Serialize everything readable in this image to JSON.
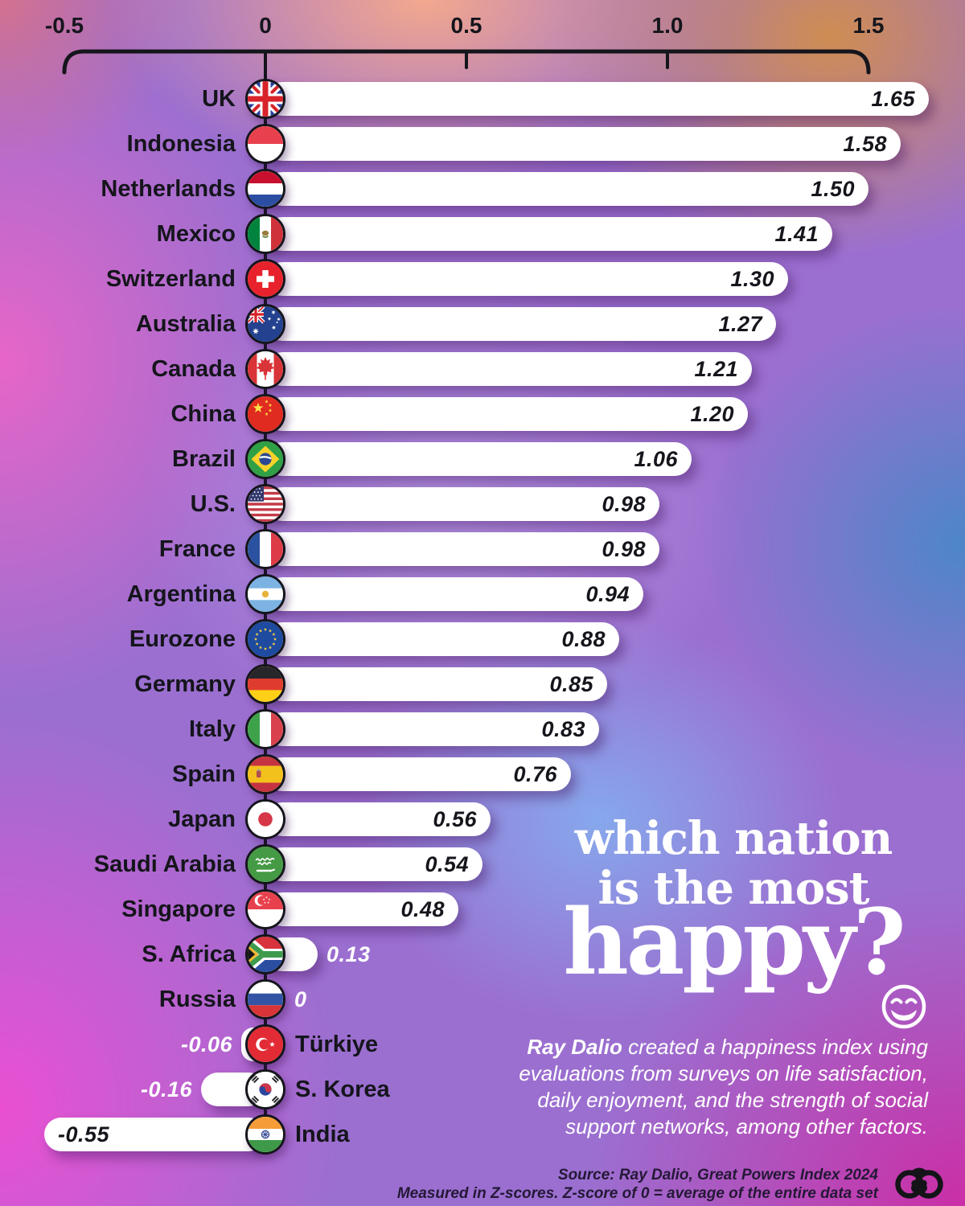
{
  "chart_data": {
    "type": "bar",
    "orientation": "horizontal",
    "title": "which nation is the most happy?",
    "unit": "Z-score",
    "x_axis": {
      "position": "top",
      "range": [
        -0.5,
        1.5
      ],
      "ticks": [
        {
          "label": "-0.5",
          "value": -0.5
        },
        {
          "label": "0",
          "value": 0
        },
        {
          "label": "0.5",
          "value": 0.5
        },
        {
          "label": "1.0",
          "value": 1.0
        },
        {
          "label": "1.5",
          "value": 1.5
        }
      ]
    },
    "categories": [
      "UK",
      "Indonesia",
      "Netherlands",
      "Mexico",
      "Switzerland",
      "Australia",
      "Canada",
      "China",
      "Brazil",
      "U.S.",
      "France",
      "Argentina",
      "Eurozone",
      "Germany",
      "Italy",
      "Spain",
      "Japan",
      "Saudi Arabia",
      "Singapore",
      "S. Africa",
      "Russia",
      "Türkiye",
      "S. Korea",
      "India"
    ],
    "values": [
      1.65,
      1.58,
      1.5,
      1.41,
      1.3,
      1.27,
      1.21,
      1.2,
      1.06,
      0.98,
      0.98,
      0.94,
      0.88,
      0.85,
      0.83,
      0.76,
      0.56,
      0.54,
      0.48,
      0.13,
      0,
      -0.06,
      -0.16,
      -0.55
    ],
    "rows": [
      {
        "label": "UK",
        "flag": "uk",
        "value": 1.65,
        "display": "1.65"
      },
      {
        "label": "Indonesia",
        "flag": "indonesia",
        "value": 1.58,
        "display": "1.58"
      },
      {
        "label": "Netherlands",
        "flag": "netherlands",
        "value": 1.5,
        "display": "1.50"
      },
      {
        "label": "Mexico",
        "flag": "mexico",
        "value": 1.41,
        "display": "1.41"
      },
      {
        "label": "Switzerland",
        "flag": "switzerland",
        "value": 1.3,
        "display": "1.30"
      },
      {
        "label": "Australia",
        "flag": "australia",
        "value": 1.27,
        "display": "1.27"
      },
      {
        "label": "Canada",
        "flag": "canada",
        "value": 1.21,
        "display": "1.21"
      },
      {
        "label": "China",
        "flag": "china",
        "value": 1.2,
        "display": "1.20"
      },
      {
        "label": "Brazil",
        "flag": "brazil",
        "value": 1.06,
        "display": "1.06"
      },
      {
        "label": "U.S.",
        "flag": "us",
        "value": 0.98,
        "display": "0.98"
      },
      {
        "label": "France",
        "flag": "france",
        "value": 0.98,
        "display": "0.98"
      },
      {
        "label": "Argentina",
        "flag": "argentina",
        "value": 0.94,
        "display": "0.94"
      },
      {
        "label": "Eurozone",
        "flag": "eurozone",
        "value": 0.88,
        "display": "0.88"
      },
      {
        "label": "Germany",
        "flag": "germany",
        "value": 0.85,
        "display": "0.85"
      },
      {
        "label": "Italy",
        "flag": "italy",
        "value": 0.83,
        "display": "0.83"
      },
      {
        "label": "Spain",
        "flag": "spain",
        "value": 0.76,
        "display": "0.76"
      },
      {
        "label": "Japan",
        "flag": "japan",
        "value": 0.56,
        "display": "0.56"
      },
      {
        "label": "Saudi Arabia",
        "flag": "saudi-arabia",
        "value": 0.54,
        "display": "0.54"
      },
      {
        "label": "Singapore",
        "flag": "singapore",
        "value": 0.48,
        "display": "0.48"
      },
      {
        "label": "S. Africa",
        "flag": "s-africa",
        "value": 0.13,
        "display": "0.13"
      },
      {
        "label": "Russia",
        "flag": "russia",
        "value": 0,
        "display": "0"
      },
      {
        "label": "Türkiye",
        "flag": "turkiye",
        "value": -0.06,
        "display": "-0.06"
      },
      {
        "label": "S. Korea",
        "flag": "s-korea",
        "value": -0.16,
        "display": "-0.16"
      },
      {
        "label": "India",
        "flag": "india",
        "value": -0.55,
        "display": "-0.55"
      }
    ]
  },
  "title": {
    "line1": "which nation",
    "line2": "is the most",
    "line3": "happy?",
    "emoji": "laughing-emoji"
  },
  "description": {
    "lead": "Ray Dalio",
    "line1_rest": " created a happiness index using",
    "line2": "evaluations from surveys on life satisfaction,",
    "line3": "daily enjoyment, and the strength of social",
    "line4": "support networks, among other factors."
  },
  "source": {
    "line1": "Source: Ray Dalio, Great Powers Index 2024",
    "line2": "Measured in Z-scores. Z-score of 0 = average of the entire data set"
  },
  "colors": {
    "bar": "#ffffff",
    "value_inside": "#15151c",
    "value_outside": "#ffffff",
    "label": "#15151c",
    "axis": "#15151c",
    "title": "#ffffff",
    "description": "#ffffff",
    "source": "#241836"
  }
}
